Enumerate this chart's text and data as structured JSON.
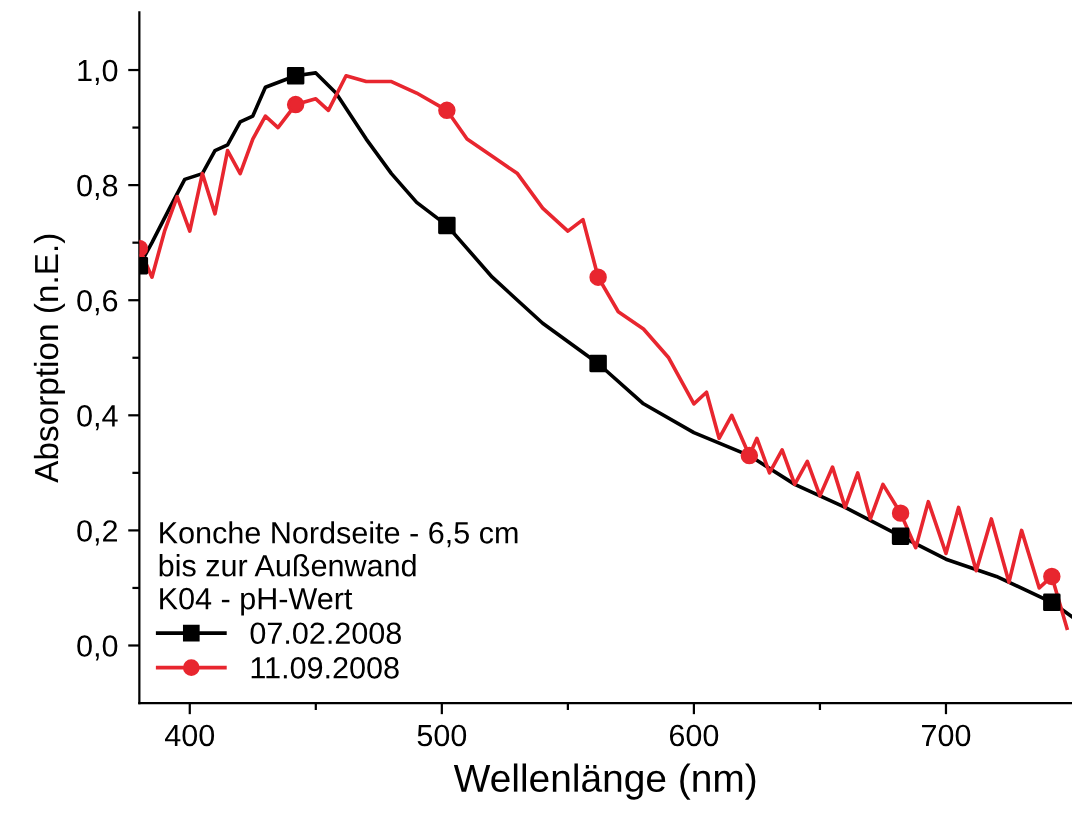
{
  "chart_data": {
    "type": "line",
    "xlabel": "Wellenlänge (nm)",
    "ylabel": "Absorption (n.E.)",
    "legend_title": "Konche Nordseite - 6,5 cm\nbis zur Außenwand\nK04 - pH-Wert",
    "legend": "bottom left",
    "grid": false,
    "line_style": "solid",
    "xlim": [
      380,
      750
    ],
    "xticks": [
      400,
      {
        "value": 450,
        "label": null
      },
      500,
      {
        "value": 550,
        "label": null
      },
      600,
      {
        "value": 650,
        "label": null
      },
      700
    ],
    "ylim": [
      -0.1,
      1.1
    ],
    "yticks": [
      {
        "value": 0.0,
        "label": "0,0"
      },
      {
        "value": 0.1,
        "label": null
      },
      {
        "value": 0.2,
        "label": "0,2"
      },
      {
        "value": 0.3,
        "label": null
      },
      {
        "value": 0.4,
        "label": "0,4"
      },
      {
        "value": 0.5,
        "label": null
      },
      {
        "value": 0.6,
        "label": "0,6"
      },
      {
        "value": 0.7,
        "label": null
      },
      {
        "value": 0.8,
        "label": "0,8"
      },
      {
        "value": 0.9,
        "label": null
      },
      {
        "value": 1.0,
        "label": "1,0"
      }
    ],
    "series": [
      {
        "name": "07.02.2008",
        "color": "#000000",
        "x": [
          380,
          385,
          392,
          398,
          405,
          410,
          415,
          420,
          425,
          430,
          436,
          442,
          450,
          458,
          470,
          480,
          490,
          502,
          520,
          540,
          562,
          580,
          600,
          622,
          640,
          660,
          682,
          700,
          720,
          742,
          750
        ],
        "values": [
          0.66,
          0.7,
          0.76,
          0.81,
          0.82,
          0.86,
          0.87,
          0.91,
          0.92,
          0.97,
          0.98,
          0.99,
          0.995,
          0.96,
          0.88,
          0.82,
          0.77,
          0.73,
          0.64,
          0.56,
          0.49,
          0.42,
          0.37,
          0.33,
          0.28,
          0.24,
          0.19,
          0.15,
          0.12,
          0.075,
          0.05
        ]
      },
      {
        "type": "scatter",
        "color": "#000000",
        "marker": "square",
        "x": [
          380,
          442,
          502,
          562,
          622,
          682,
          742
        ],
        "values": [
          0.66,
          0.99,
          0.73,
          0.49,
          null,
          0.19,
          0.075
        ]
      },
      {
        "name": "11.09.2008",
        "color": "#e8262f",
        "x": [
          380,
          385,
          390,
          395,
          400,
          405,
          410,
          415,
          420,
          425,
          430,
          435,
          442,
          450,
          455,
          462,
          470,
          480,
          490,
          502,
          510,
          520,
          530,
          540,
          550,
          556,
          562,
          570,
          580,
          590,
          600,
          605,
          610,
          615,
          622,
          625,
          630,
          635,
          640,
          645,
          650,
          655,
          660,
          665,
          670,
          675,
          682,
          688,
          693,
          700,
          705,
          712,
          718,
          725,
          730,
          737,
          742,
          748
        ],
        "values": [
          0.69,
          0.64,
          0.72,
          0.78,
          0.72,
          0.82,
          0.75,
          0.86,
          0.82,
          0.88,
          0.92,
          0.9,
          0.94,
          0.95,
          0.93,
          0.99,
          0.98,
          0.98,
          0.96,
          0.93,
          0.88,
          0.85,
          0.82,
          0.76,
          0.72,
          0.74,
          0.64,
          0.58,
          0.55,
          0.5,
          0.42,
          0.44,
          0.36,
          0.4,
          0.33,
          0.36,
          0.3,
          0.34,
          0.28,
          0.32,
          0.26,
          0.31,
          0.24,
          0.3,
          0.22,
          0.28,
          0.23,
          0.17,
          0.25,
          0.16,
          0.24,
          0.13,
          0.22,
          0.11,
          0.2,
          0.1,
          0.12,
          0.03
        ]
      },
      {
        "type": "scatter",
        "color": "#e8262f",
        "marker": "circle",
        "x": [
          380,
          442,
          502,
          562,
          622,
          682,
          742
        ],
        "values": [
          0.69,
          0.94,
          0.93,
          0.64,
          0.33,
          0.23,
          0.12
        ]
      }
    ]
  }
}
